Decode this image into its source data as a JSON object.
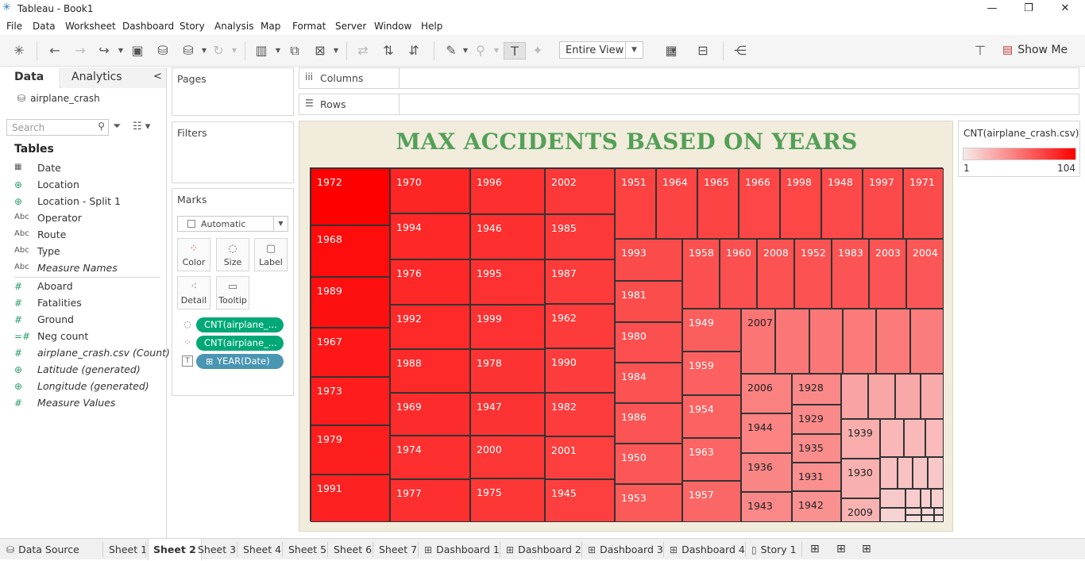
{
  "window": {
    "title": "Tableau - Book1",
    "minimize_glyph": "—",
    "restore_glyph": "❐",
    "close_glyph": "✕"
  },
  "menu": [
    "File",
    "Data",
    "Worksheet",
    "Dashboard",
    "Story",
    "Analysis",
    "Map",
    "Format",
    "Server",
    "Window",
    "Help"
  ],
  "toolbar": {
    "view_select": "Entire View",
    "show_me": "Show Me"
  },
  "left_pane": {
    "tab_data": "Data",
    "tab_analytics": "Analytics",
    "collapse_glyph": "<",
    "datasource": "airplane_crash",
    "search_placeholder": "Search",
    "tables_header": "Tables",
    "dimensions": [
      {
        "icon": "calendar-icon",
        "glyph": "▦",
        "name": "Date",
        "italic": false
      },
      {
        "icon": "globe-icon",
        "glyph": "⊕",
        "name": "Location",
        "italic": false
      },
      {
        "icon": "globe-icon",
        "glyph": "⊕",
        "name": "Location - Split 1",
        "italic": false
      },
      {
        "icon": "string-icon",
        "glyph": "Abc",
        "name": "Operator",
        "italic": false
      },
      {
        "icon": "string-icon",
        "glyph": "Abc",
        "name": "Route",
        "italic": false
      },
      {
        "icon": "string-icon",
        "glyph": "Abc",
        "name": "Type",
        "italic": false
      },
      {
        "icon": "string-icon",
        "glyph": "Abc",
        "name": "Measure Names",
        "italic": true
      }
    ],
    "measures": [
      {
        "icon": "number-icon",
        "glyph": "#",
        "name": "Aboard",
        "italic": false
      },
      {
        "icon": "number-icon",
        "glyph": "#",
        "name": "Fatalities",
        "italic": false
      },
      {
        "icon": "number-icon",
        "glyph": "#",
        "name": "Ground",
        "italic": false
      },
      {
        "icon": "calculated-number-icon",
        "glyph": "=#",
        "name": "Neg count",
        "italic": false
      },
      {
        "icon": "number-icon",
        "glyph": "#",
        "name": "airplane_crash.csv (Count)",
        "italic": true
      },
      {
        "icon": "globe-icon",
        "glyph": "⊕",
        "name": "Latitude (generated)",
        "italic": true
      },
      {
        "icon": "globe-icon",
        "glyph": "⊕",
        "name": "Longitude (generated)",
        "italic": true
      },
      {
        "icon": "number-icon",
        "glyph": "#",
        "name": "Measure Values",
        "italic": true
      }
    ]
  },
  "cards": {
    "pages": "Pages",
    "filters": "Filters",
    "marks": "Marks",
    "mark_type": "Automatic",
    "buttons": {
      "color": "Color",
      "size": "Size",
      "label": "Label",
      "detail": "Detail",
      "tooltip": "Tooltip"
    },
    "pills": [
      "CNT(airplane_...",
      "CNT(airplane_...",
      "YEAR(Date)"
    ]
  },
  "shelves": {
    "columns": "Columns",
    "rows": "Rows"
  },
  "viz": {
    "title": "MAX ACCIDENTS BASED ON YEARS"
  },
  "legend": {
    "title": "CNT(airplane_crash.csv)",
    "min": "1",
    "max": "104"
  },
  "sheet_tabs": {
    "data_source": "Data Source",
    "sheets": [
      "Sheet 1",
      "Sheet 2",
      "Sheet 3",
      "Sheet 4",
      "Sheet 5",
      "Sheet 6",
      "Sheet 7",
      "Dashboard 1",
      "Dashboard 2",
      "Dashboard 3",
      "Dashboard 4",
      "Story 1"
    ],
    "active": "Sheet 2"
  },
  "chart_data": {
    "type": "treemap",
    "title": "MAX ACCIDENTS BASED ON YEARS",
    "measure": "CNT(airplane_crash.csv)",
    "color_range": [
      1,
      104
    ],
    "color_scale": [
      "#f7eaea",
      "#ff0000"
    ],
    "labeled_years": [
      "1972",
      "1968",
      "1989",
      "1967",
      "1973",
      "1979",
      "1991",
      "1970",
      "1994",
      "1976",
      "1992",
      "1988",
      "1969",
      "1974",
      "1977",
      "1996",
      "1946",
      "1995",
      "1999",
      "1978",
      "1947",
      "2000",
      "1975",
      "2002",
      "1985",
      "1987",
      "1962",
      "1990",
      "1982",
      "2001",
      "1945",
      "1951",
      "1964",
      "1965",
      "1966",
      "1998",
      "1948",
      "1997",
      "1971",
      "1993",
      "1958",
      "1960",
      "2008",
      "1952",
      "1983",
      "2003",
      "2004",
      "1981",
      "1980",
      "1984",
      "1986",
      "1950",
      "1953",
      "1949",
      "1959",
      "1954",
      "1963",
      "1957",
      "2007",
      "2006",
      "1944",
      "1936",
      "1943",
      "1928",
      "1929",
      "1935",
      "1931",
      "1942",
      "1939",
      "1930",
      "2009"
    ]
  }
}
